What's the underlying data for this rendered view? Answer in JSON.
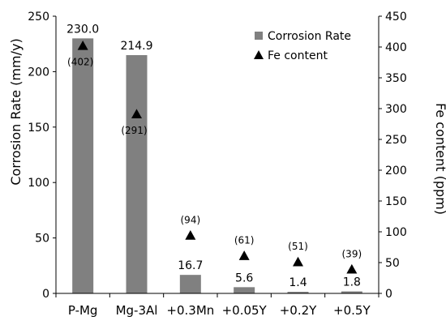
{
  "chart_data": {
    "type": "bar",
    "categories": [
      "P-Mg",
      "Mg-3Al",
      "+0.3Mn",
      "+0.05Y",
      "+0.2Y",
      "+0.5Y"
    ],
    "series": [
      {
        "name": "Corrosion Rate",
        "kind": "bar",
        "axis": "left",
        "values": [
          230.0,
          214.9,
          16.7,
          5.6,
          1.4,
          1.8
        ],
        "labels": [
          "230.0",
          "214.9",
          "16.7",
          "5.6",
          "1.4",
          "1.8"
        ],
        "color": "#808080"
      },
      {
        "name": "Fe content",
        "kind": "marker",
        "marker": "triangle",
        "axis": "right",
        "values": [
          402,
          291,
          94,
          61,
          51,
          39
        ],
        "labels": [
          "(402)",
          "(291)",
          "(94)",
          "(61)",
          "(51)",
          "(39)"
        ],
        "color": "#000000"
      }
    ],
    "ylabel": "Corrosion Rate (mm/y)",
    "y2label": "Fe content (ppm)",
    "ylim": [
      0,
      250
    ],
    "y2lim": [
      0,
      450
    ],
    "yticks": [
      "0",
      "50",
      "100",
      "150",
      "200",
      "250"
    ],
    "y2ticks": [
      "0",
      "50",
      "100",
      "150",
      "200",
      "250",
      "300",
      "350",
      "400",
      "450"
    ],
    "legend_position": "top-right",
    "grid": false
  }
}
